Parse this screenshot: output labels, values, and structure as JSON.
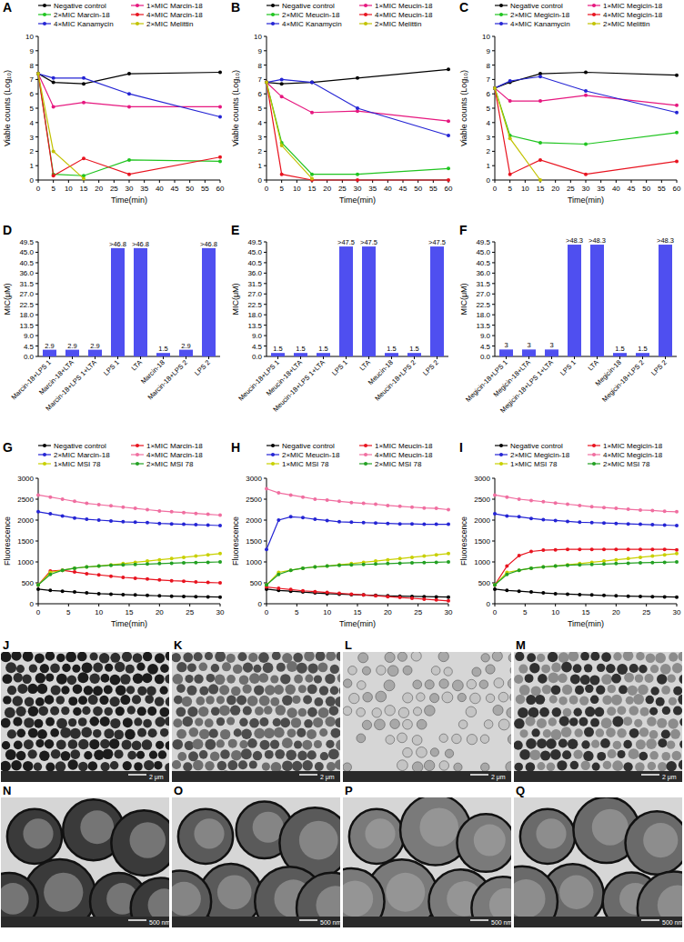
{
  "chart_data": [
    {
      "type": "line",
      "title": "A",
      "x_label": "Time(min)",
      "y_label": "Viable counts (Log₁₀)",
      "x": [
        0,
        5,
        15,
        30,
        60
      ],
      "xlim": [
        0,
        60
      ],
      "xticks": [
        0,
        5,
        10,
        15,
        20,
        25,
        30,
        35,
        40,
        45,
        50,
        55,
        60
      ],
      "ylim": [
        0,
        10
      ],
      "yticks": [
        0,
        1,
        2,
        3,
        4,
        5,
        6,
        7,
        8,
        9,
        10
      ],
      "legend": "top",
      "marker": "circle",
      "series": [
        {
          "name": "Negative control",
          "color": "#000000",
          "values": [
            7.4,
            6.8,
            6.7,
            7.4,
            7.5
          ]
        },
        {
          "name": "1×MIC Marcin-18",
          "color": "#e6177f",
          "values": [
            7.4,
            5.1,
            5.4,
            5.1,
            5.1
          ]
        },
        {
          "name": "2×MIC Marcin-18",
          "color": "#1fc41f",
          "values": [
            7.4,
            0.4,
            0.3,
            1.4,
            1.3
          ]
        },
        {
          "name": "4×MIC Marcin-18",
          "color": "#e8131f",
          "values": [
            7.4,
            0.3,
            1.5,
            0.4,
            1.6
          ]
        },
        {
          "name": "4×MIC Kanamycin",
          "color": "#2424d4",
          "values": [
            7.4,
            7.1,
            7.1,
            6.0,
            4.4
          ]
        },
        {
          "name": "2×MIC Melittin",
          "color": "#c2c200",
          "values": [
            7.4,
            2.0,
            0.1,
            null,
            null
          ]
        }
      ]
    },
    {
      "type": "line",
      "title": "B",
      "x_label": "Time(min)",
      "y_label": "Viable counts (Log₁₀)",
      "x": [
        0,
        5,
        15,
        30,
        60
      ],
      "xlim": [
        0,
        60
      ],
      "xticks": [
        0,
        5,
        10,
        15,
        20,
        25,
        30,
        35,
        40,
        45,
        50,
        55,
        60
      ],
      "ylim": [
        0,
        10
      ],
      "yticks": [
        0,
        1,
        2,
        3,
        4,
        5,
        6,
        7,
        8,
        9,
        10
      ],
      "legend": "top",
      "marker": "circle",
      "series": [
        {
          "name": "Negative control",
          "color": "#000000",
          "values": [
            6.8,
            6.7,
            6.8,
            7.1,
            7.7
          ]
        },
        {
          "name": "1×MIC Meucin-18",
          "color": "#e6177f",
          "values": [
            6.8,
            5.8,
            4.7,
            4.8,
            4.1
          ]
        },
        {
          "name": "2×MIC Meucin-18",
          "color": "#1fc41f",
          "values": [
            6.8,
            2.6,
            0.4,
            0.4,
            0.8
          ]
        },
        {
          "name": "4×MIC Meucin-18",
          "color": "#e8131f",
          "values": [
            6.8,
            0.4,
            0,
            0,
            0
          ]
        },
        {
          "name": "4×MIC Kanamycin",
          "color": "#2424d4",
          "values": [
            6.8,
            7.0,
            6.8,
            5.0,
            3.1
          ]
        },
        {
          "name": "2×MIC Melittin",
          "color": "#c2c200",
          "values": [
            6.8,
            2.4,
            0.1,
            null,
            null
          ]
        }
      ]
    },
    {
      "type": "line",
      "title": "C",
      "x_label": "Time(min)",
      "y_label": "Viable counts (Log₁₀)",
      "x": [
        0,
        5,
        15,
        30,
        60
      ],
      "xlim": [
        0,
        60
      ],
      "xticks": [
        0,
        5,
        10,
        15,
        20,
        25,
        30,
        35,
        40,
        45,
        50,
        55,
        60
      ],
      "ylim": [
        0,
        10
      ],
      "yticks": [
        0,
        1,
        2,
        3,
        4,
        5,
        6,
        7,
        8,
        9,
        10
      ],
      "legend": "top",
      "marker": "circle",
      "series": [
        {
          "name": "Negative control",
          "color": "#000000",
          "values": [
            6.4,
            6.8,
            7.4,
            7.5,
            7.3
          ]
        },
        {
          "name": "1×MIC Megicin-18",
          "color": "#e6177f",
          "values": [
            6.4,
            5.5,
            5.5,
            5.9,
            5.2
          ]
        },
        {
          "name": "2×MIC Megicin-18",
          "color": "#1fc41f",
          "values": [
            6.4,
            3.1,
            2.6,
            2.5,
            3.3
          ]
        },
        {
          "name": "4×MIC Megicin-18",
          "color": "#e8131f",
          "values": [
            6.4,
            0.4,
            1.4,
            0.4,
            1.3
          ]
        },
        {
          "name": "4×MIC Kanamycin",
          "color": "#2424d4",
          "values": [
            6.4,
            6.9,
            7.2,
            6.2,
            4.7
          ]
        },
        {
          "name": "2×MIC Melittin",
          "color": "#c2c200",
          "values": [
            6.4,
            2.9,
            0,
            null,
            null
          ]
        }
      ]
    },
    {
      "type": "bar",
      "title": "D",
      "y_label": "MIC(μM)",
      "color": "#4f4ff0",
      "data_labels": true,
      "categories": [
        "Marcin-18+LPS 1",
        "Marcin-18+LTA",
        "Marcin-18+LPS 1+LTA",
        "LPS 1",
        "LTA",
        "Marcin-18",
        "Marcin-18+LPS 2",
        "LPS 2"
      ],
      "values": [
        2.9,
        2.9,
        2.9,
        46.8,
        46.8,
        1.5,
        2.9,
        46.8
      ],
      "value_labels": [
        "2.9",
        "2.9",
        "2.9",
        ">46.8",
        ">46.8",
        "1.5",
        "2.9",
        ">46.8"
      ],
      "ylim": [
        0,
        49.5
      ],
      "yticks": [
        {
          "value": 0,
          "label": "0.0"
        },
        4.5,
        {
          "value": 9,
          "label": "9.0"
        },
        13.5,
        {
          "value": 18,
          "label": "18.0"
        },
        22.5,
        {
          "value": 27,
          "label": "27.0"
        },
        31.5,
        {
          "value": 36,
          "label": "36.0"
        },
        40.5,
        {
          "value": 45,
          "label": "45.0"
        },
        49.5
      ]
    },
    {
      "type": "bar",
      "title": "E",
      "y_label": "MIC(μM)",
      "color": "#4f4ff0",
      "data_labels": true,
      "categories": [
        "Meucin-18+LPS 1",
        "Meucin-18+LTA",
        "Meucin-18+LPS 1+LTA",
        "LPS 1",
        "LTA",
        "Meucin-18",
        "Meucin-18+LPS 2",
        "LPS 2"
      ],
      "values": [
        1.5,
        1.5,
        1.5,
        47.5,
        47.5,
        1.5,
        1.5,
        47.5
      ],
      "value_labels": [
        "1.5",
        "1.5",
        "1.5",
        ">47.5",
        ">47.5",
        "1.5",
        "1.5",
        ">47.5"
      ],
      "ylim": [
        0,
        49.5
      ],
      "yticks": [
        {
          "value": 0,
          "label": "0.0"
        },
        4.5,
        {
          "value": 9,
          "label": "9.0"
        },
        13.5,
        {
          "value": 18,
          "label": "18.0"
        },
        22.5,
        {
          "value": 27,
          "label": "27.0"
        },
        31.5,
        {
          "value": 36,
          "label": "36.0"
        },
        40.5,
        {
          "value": 45,
          "label": "45.0"
        },
        49.5
      ]
    },
    {
      "type": "bar",
      "title": "F",
      "y_label": "MIC(μM)",
      "color": "#4f4ff0",
      "data_labels": true,
      "categories": [
        "Megicin-18+LPS 1",
        "Megicin-18+LTA",
        "Megicin-18+LPS 1+LTA",
        "LPS 1",
        "LTA",
        "Megicin-18",
        "Megicin-18+LPS 2",
        "LPS 2"
      ],
      "values": [
        3,
        3,
        3,
        48.3,
        48.3,
        1.5,
        1.5,
        48.3
      ],
      "value_labels": [
        "3",
        "3",
        "3",
        ">48.3",
        ">48.3",
        "1.5",
        "1.5",
        ">48.3"
      ],
      "ylim": [
        0,
        49.5
      ],
      "yticks": [
        {
          "value": 0,
          "label": "0.0"
        },
        4.5,
        {
          "value": 9,
          "label": "9.0"
        },
        13.5,
        {
          "value": 18,
          "label": "18.0"
        },
        22.5,
        {
          "value": 27,
          "label": "27.0"
        },
        31.5,
        {
          "value": 36,
          "label": "36.0"
        },
        40.5,
        {
          "value": 45,
          "label": "45.0"
        },
        49.5
      ]
    },
    {
      "type": "line",
      "title": "G",
      "x_label": "Time(min)",
      "y_label": "Fluorescence",
      "x": [
        0,
        2,
        4,
        6,
        8,
        10,
        12,
        14,
        16,
        18,
        20,
        22,
        24,
        26,
        28,
        30
      ],
      "xlim": [
        0,
        30
      ],
      "xticks": [
        0,
        5,
        10,
        15,
        20,
        25,
        30
      ],
      "ylim": [
        0,
        3000
      ],
      "yticks": [
        0,
        500,
        1000,
        1500,
        2000,
        2500,
        3000
      ],
      "legend": "top",
      "marker": "circle",
      "series": [
        {
          "name": "Negative control",
          "color": "#000000",
          "values": [
            350,
            320,
            300,
            280,
            260,
            240,
            230,
            220,
            210,
            200,
            190,
            180,
            175,
            170,
            165,
            160
          ]
        },
        {
          "name": "1×MIC Marcin-18",
          "color": "#e8131f",
          "values": [
            450,
            780,
            800,
            760,
            720,
            690,
            660,
            630,
            610,
            590,
            570,
            550,
            540,
            520,
            510,
            500
          ]
        },
        {
          "name": "2×MIC Marcin-18",
          "color": "#2424d4",
          "values": [
            2200,
            2150,
            2100,
            2050,
            2020,
            2000,
            1980,
            1960,
            1950,
            1940,
            1920,
            1910,
            1900,
            1890,
            1880,
            1870
          ]
        },
        {
          "name": "4×MIC Marcin-18",
          "color": "#f06ea0",
          "values": [
            2600,
            2550,
            2500,
            2450,
            2400,
            2370,
            2340,
            2310,
            2280,
            2250,
            2220,
            2200,
            2180,
            2160,
            2140,
            2120
          ]
        },
        {
          "name": "1×MIC MSI 78",
          "color": "#c8d000",
          "values": [
            450,
            750,
            800,
            850,
            880,
            900,
            930,
            960,
            990,
            1020,
            1050,
            1080,
            1110,
            1140,
            1170,
            1200
          ]
        },
        {
          "name": "2×MIC MSI 78",
          "color": "#22a022",
          "values": [
            450,
            700,
            800,
            850,
            880,
            900,
            920,
            930,
            940,
            950,
            960,
            970,
            980,
            985,
            990,
            1000
          ]
        }
      ]
    },
    {
      "type": "line",
      "title": "H",
      "x_label": "Time(min)",
      "y_label": "Fluorescence",
      "x": [
        0,
        2,
        4,
        6,
        8,
        10,
        12,
        14,
        16,
        18,
        20,
        22,
        24,
        26,
        28,
        30
      ],
      "xlim": [
        0,
        30
      ],
      "xticks": [
        0,
        5,
        10,
        15,
        20,
        25,
        30
      ],
      "ylim": [
        0,
        3000
      ],
      "yticks": [
        0,
        500,
        1000,
        1500,
        2000,
        2500,
        3000
      ],
      "legend": "top",
      "marker": "circle",
      "series": [
        {
          "name": "Negative control",
          "color": "#000000",
          "values": [
            350,
            320,
            300,
            280,
            260,
            240,
            230,
            220,
            210,
            200,
            190,
            180,
            175,
            170,
            165,
            160
          ]
        },
        {
          "name": "1×MIC Meucin-18",
          "color": "#e8131f",
          "values": [
            400,
            370,
            340,
            310,
            290,
            270,
            250,
            230,
            210,
            190,
            170,
            150,
            130,
            110,
            90,
            70
          ]
        },
        {
          "name": "2×MIC Meucin-18",
          "color": "#2424d4",
          "values": [
            1300,
            2000,
            2080,
            2060,
            2020,
            1990,
            1960,
            1950,
            1940,
            1930,
            1920,
            1910,
            1910,
            1900,
            1900,
            1900
          ]
        },
        {
          "name": "4×MIC Meucin-18",
          "color": "#f06ea0",
          "values": [
            2750,
            2650,
            2600,
            2550,
            2500,
            2480,
            2450,
            2420,
            2400,
            2380,
            2350,
            2330,
            2310,
            2290,
            2280,
            2250
          ]
        },
        {
          "name": "1×MIC MSI 78",
          "color": "#c8d000",
          "values": [
            450,
            750,
            800,
            850,
            880,
            900,
            930,
            960,
            990,
            1020,
            1050,
            1080,
            1110,
            1140,
            1170,
            1200
          ]
        },
        {
          "name": "2×MIC MSI 78",
          "color": "#22a022",
          "values": [
            450,
            700,
            800,
            850,
            880,
            900,
            920,
            930,
            940,
            950,
            960,
            970,
            980,
            985,
            990,
            1000
          ]
        }
      ]
    },
    {
      "type": "line",
      "title": "I",
      "x_label": "Time(min)",
      "y_label": "Fluorescence",
      "x": [
        0,
        2,
        4,
        6,
        8,
        10,
        12,
        14,
        16,
        18,
        20,
        22,
        24,
        26,
        28,
        30
      ],
      "xlim": [
        0,
        30
      ],
      "xticks": [
        0,
        5,
        10,
        15,
        20,
        25,
        30
      ],
      "ylim": [
        0,
        3000
      ],
      "yticks": [
        0,
        500,
        1000,
        1500,
        2000,
        2500,
        3000
      ],
      "legend": "top",
      "marker": "circle",
      "series": [
        {
          "name": "Negative control",
          "color": "#000000",
          "values": [
            350,
            320,
            300,
            280,
            260,
            240,
            230,
            220,
            210,
            200,
            190,
            180,
            175,
            170,
            165,
            160
          ]
        },
        {
          "name": "1×MIC Megicin-18",
          "color": "#e8131f",
          "values": [
            450,
            900,
            1150,
            1250,
            1280,
            1290,
            1300,
            1300,
            1300,
            1300,
            1300,
            1300,
            1300,
            1300,
            1300,
            1290
          ]
        },
        {
          "name": "2×MIC Megicin-18",
          "color": "#2424d4",
          "values": [
            2150,
            2100,
            2080,
            2040,
            2010,
            1990,
            1970,
            1950,
            1940,
            1930,
            1920,
            1910,
            1900,
            1890,
            1880,
            1870
          ]
        },
        {
          "name": "4×MIC Megicin-18",
          "color": "#f06ea0",
          "values": [
            2600,
            2550,
            2500,
            2470,
            2440,
            2410,
            2380,
            2350,
            2320,
            2300,
            2280,
            2260,
            2240,
            2230,
            2210,
            2200
          ]
        },
        {
          "name": "1×MIC MSI 78",
          "color": "#c8d000",
          "values": [
            450,
            750,
            800,
            850,
            880,
            900,
            930,
            960,
            990,
            1020,
            1050,
            1080,
            1110,
            1140,
            1170,
            1200
          ]
        },
        {
          "name": "2×MIC MSI 78",
          "color": "#22a022",
          "values": [
            450,
            700,
            800,
            850,
            880,
            900,
            920,
            930,
            940,
            950,
            960,
            970,
            980,
            985,
            990,
            1000
          ]
        }
      ]
    }
  ],
  "images": [
    {
      "label": "J",
      "scale_bar": "2 μm"
    },
    {
      "label": "K",
      "scale_bar": "2 μm"
    },
    {
      "label": "L",
      "scale_bar": "2 μm"
    },
    {
      "label": "M",
      "scale_bar": "2 μm"
    },
    {
      "label": "N",
      "scale_bar": "500 nm"
    },
    {
      "label": "O",
      "scale_bar": "500 nm"
    },
    {
      "label": "P",
      "scale_bar": "500 nm"
    },
    {
      "label": "Q",
      "scale_bar": "500 nm"
    }
  ]
}
